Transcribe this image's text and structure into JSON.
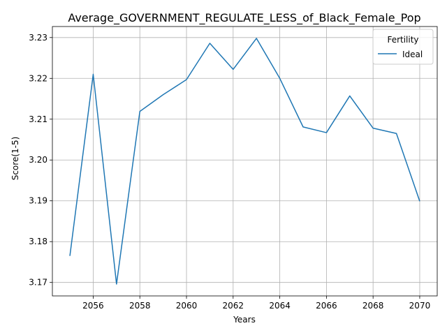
{
  "chart_data": {
    "type": "line",
    "title": "Average_GOVERNMENT_REGULATE_LESS_of_Black_Female_Pop",
    "xlabel": "Years",
    "ylabel": "Score(1-5)",
    "xlim": [
      2054.25,
      2070.75
    ],
    "ylim": [
      3.1667,
      3.2327
    ],
    "xticks": [
      2056,
      2058,
      2060,
      2062,
      2064,
      2066,
      2068,
      2070
    ],
    "yticks": [
      3.17,
      3.18,
      3.19,
      3.2,
      3.21,
      3.22,
      3.23
    ],
    "ytick_labels": [
      "3.17",
      "3.18",
      "3.19",
      "3.20",
      "3.21",
      "3.22",
      "3.23"
    ],
    "grid": true,
    "legend": {
      "title": "Fertility",
      "placement": "top-right"
    },
    "series": [
      {
        "name": "Ideal",
        "color": "#1f77b4",
        "x": [
          2055,
          2056,
          2057,
          2058,
          2059,
          2060,
          2061,
          2062,
          2063,
          2064,
          2065,
          2066,
          2067,
          2068,
          2069,
          2070
        ],
        "y": [
          3.1765,
          3.221,
          3.1696,
          3.2119,
          3.216,
          3.2197,
          3.2286,
          3.2222,
          3.2298,
          3.22,
          3.2081,
          3.2067,
          3.2157,
          3.2078,
          3.2065,
          3.1899
        ]
      }
    ]
  }
}
